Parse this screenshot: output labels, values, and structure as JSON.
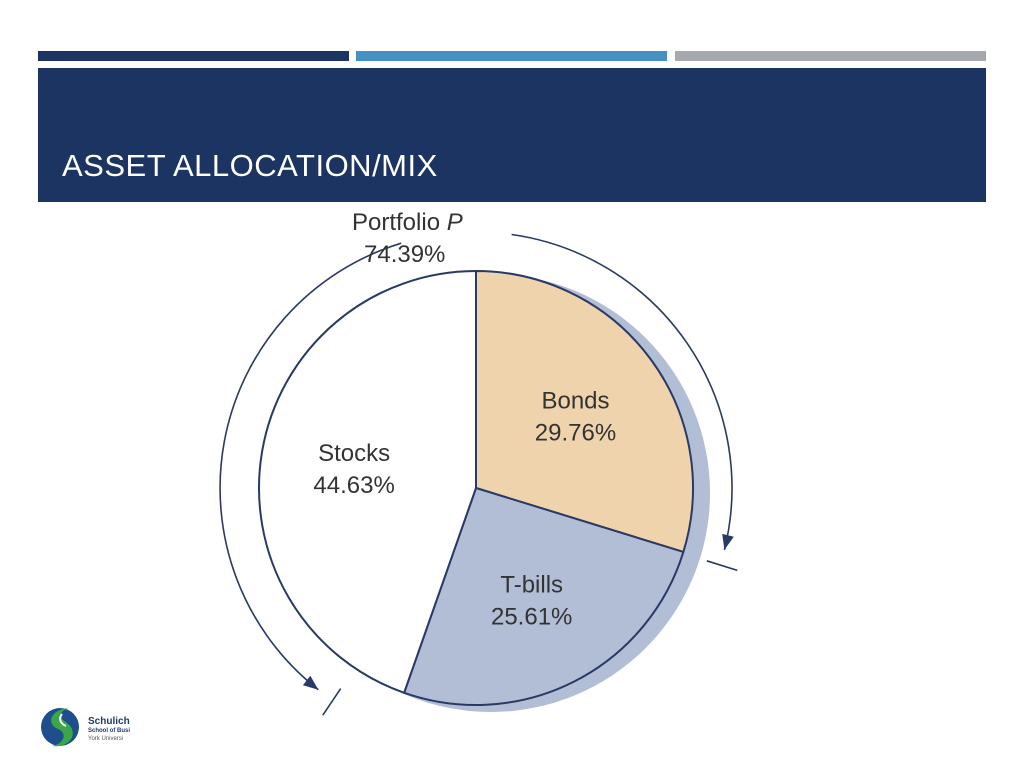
{
  "slide": {
    "title": "ASSET ALLOCATION/MIX",
    "colors": {
      "bar1": "#1c3461",
      "bar2": "#4591c4",
      "bar3": "#a5a9ae",
      "header": "#1c3461"
    }
  },
  "chart_data": {
    "type": "pie",
    "title": "",
    "slices": [
      {
        "label": "Bonds",
        "value": 29.76,
        "value_label": "29.76%",
        "color": "#efd3ac"
      },
      {
        "label": "T-bills",
        "value": 25.61,
        "value_label": "25.61%",
        "color": "#b2bdd6"
      },
      {
        "label": "Stocks",
        "value": 44.63,
        "value_label": "44.63%",
        "color": "#ffffff"
      }
    ],
    "annotation": {
      "label": "Portfolio P",
      "value_label": "74.39%",
      "spans": [
        "Stocks",
        "Bonds"
      ]
    },
    "shadow_color": "#b2bdd6",
    "stroke_color": "#2a3a66"
  },
  "logo": {
    "name": "Schulich",
    "sub": "School of Busi",
    "uni": "York Universi"
  }
}
